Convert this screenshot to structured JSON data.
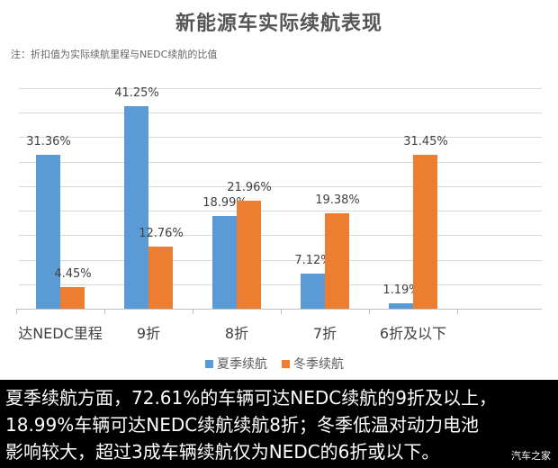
{
  "header": {
    "title": "新能源车实际续航表现",
    "note": "注：折扣值为实际续航里程与NEDC续航的比值"
  },
  "legend": {
    "summer": "夏季续航",
    "winter": "冬季续航"
  },
  "colors": {
    "summer": "#5B9BD5",
    "winter": "#ED7D31"
  },
  "chart_data": {
    "type": "bar",
    "title": "新能源车实际续航表现",
    "subtitle": "注：折扣值为实际续航里程与NEDC续航的比值",
    "categories": [
      "达NEDC里程",
      "9折",
      "8折",
      "7折",
      "6折及以下"
    ],
    "series": [
      {
        "name": "夏季续航",
        "values": [
          31.36,
          41.25,
          18.99,
          7.12,
          1.19
        ],
        "labels": [
          "31.36%",
          "41.25%",
          "18.99%",
          "7.12%",
          "1.19%"
        ],
        "color": "#5B9BD5"
      },
      {
        "name": "冬季续航",
        "values": [
          4.45,
          12.76,
          21.96,
          19.38,
          31.45
        ],
        "labels": [
          "4.45%",
          "12.76%",
          "21.96%",
          "19.38%",
          "31.45%"
        ],
        "color": "#ED7D31"
      }
    ],
    "xlabel": "",
    "ylabel": "",
    "ylim": [
      0,
      45
    ],
    "grid": true,
    "y_axis_visible": false,
    "legend_position": "bottom"
  },
  "caption": {
    "line1": "夏季续航方面，72.61%的车辆可达NEDC续航的9折及以上，",
    "line2": "18.99%车辆可达NEDC续航续航8折；冬季低温对动力电池",
    "line3": "影响较大，超过3成车辆续航仅为NEDC的6折或以下。",
    "watermark": "汽车之家"
  }
}
